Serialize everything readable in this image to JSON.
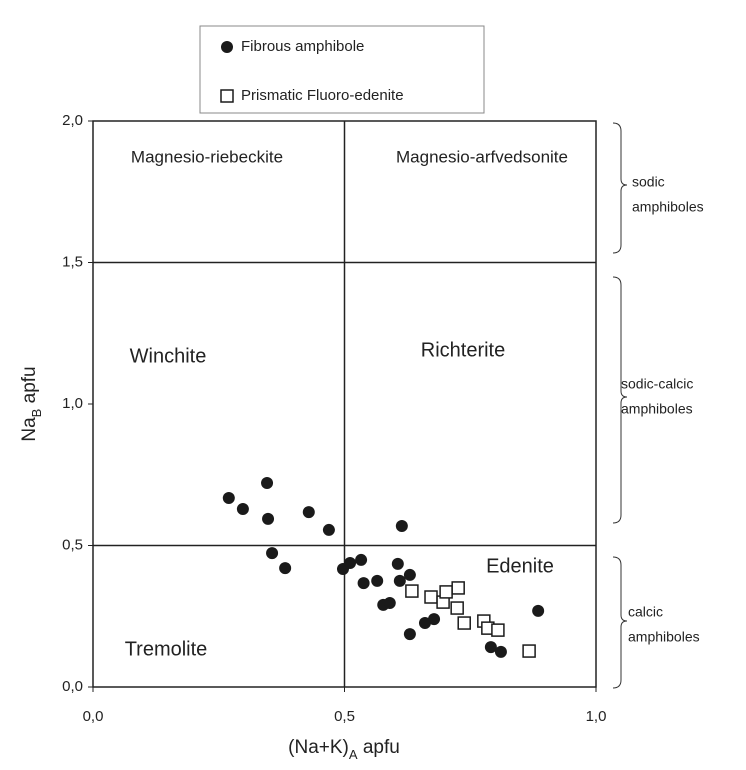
{
  "chart_data": {
    "type": "scatter",
    "x_label": [
      "(Na+K)",
      "A",
      " apfu"
    ],
    "y_label": [
      "Na",
      "B",
      " apfu"
    ],
    "xlim": [
      0,
      1
    ],
    "ylim": [
      0,
      2
    ],
    "xticks": [
      {
        "value": 0,
        "label": "0,0"
      },
      {
        "value": 0.5,
        "label": "0,5"
      },
      {
        "value": 1,
        "label": "1,0"
      }
    ],
    "yticks": [
      {
        "value": 0,
        "label": "0,0"
      },
      {
        "value": 0.5,
        "label": "0,5"
      },
      {
        "value": 1,
        "label": "1,0"
      },
      {
        "value": 1.5,
        "label": "1,5"
      },
      {
        "value": 2,
        "label": "2,0"
      }
    ],
    "dividers": {
      "x": [
        0.5
      ],
      "y": [
        0.5,
        1.5
      ]
    },
    "regions": [
      "Magnesio-riebeckite",
      "Magnesio-arfvedsonite",
      "Winchite",
      "Richterite",
      "Edenite",
      "Tremolite"
    ],
    "groups": [
      [
        "sodic",
        "amphiboles"
      ],
      [
        "sodic-calcic",
        "amphiboles"
      ],
      [
        "calcic",
        "amphiboles"
      ]
    ],
    "series": [
      {
        "name": "Fibrous amphibole",
        "color": "#1a1a1a",
        "marker": "circle",
        "x": [
          0.27,
          0.298,
          0.346,
          0.348,
          0.356,
          0.382,
          0.429,
          0.469,
          0.497,
          0.511,
          0.533,
          0.538,
          0.565,
          0.577,
          0.59,
          0.606,
          0.614,
          0.61,
          0.63,
          0.63,
          0.66,
          0.678,
          0.791,
          0.811,
          0.885
        ],
        "values": [
          0.668,
          0.629,
          0.721,
          0.594,
          0.473,
          0.42,
          0.618,
          0.555,
          0.417,
          0.438,
          0.449,
          0.367,
          0.375,
          0.29,
          0.297,
          0.435,
          0.569,
          0.375,
          0.396,
          0.187,
          0.226,
          0.24,
          0.141,
          0.124,
          0.269
        ]
      },
      {
        "name": "Prismatic Fluoro-edenite",
        "color": "#1a1a1a",
        "marker": "square",
        "x": [
          0.634,
          0.672,
          0.696,
          0.702,
          0.724,
          0.726,
          0.738,
          0.777,
          0.785,
          0.805,
          0.867
        ],
        "values": [
          0.339,
          0.318,
          0.3,
          0.336,
          0.279,
          0.35,
          0.226,
          0.233,
          0.208,
          0.201,
          0.127
        ]
      }
    ]
  }
}
